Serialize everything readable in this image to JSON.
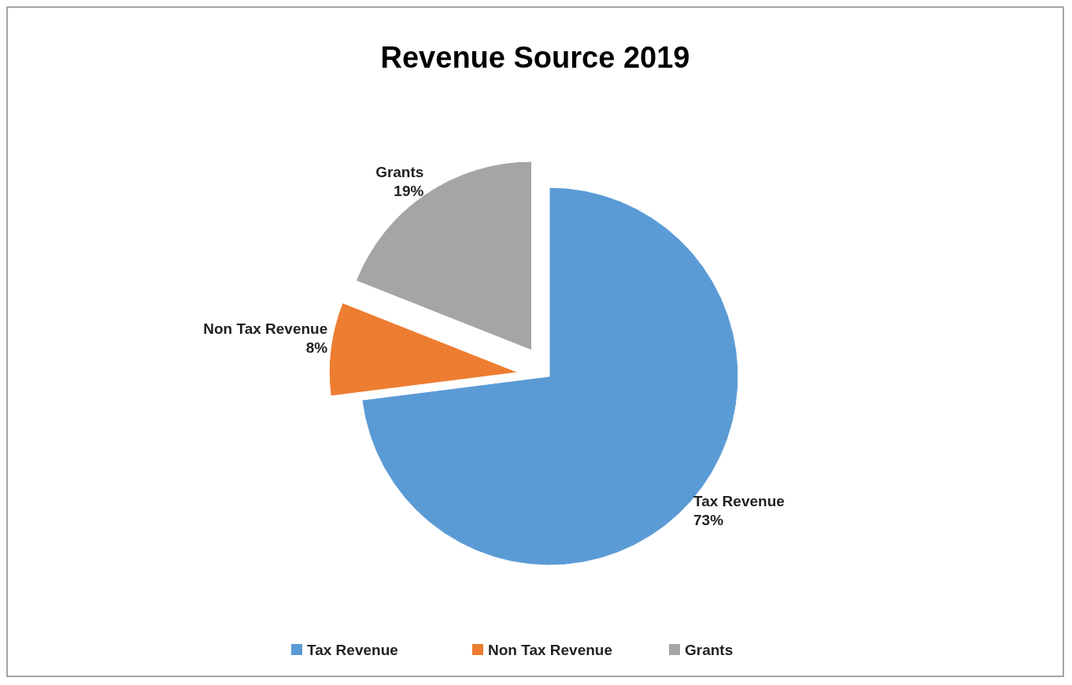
{
  "chart_data": {
    "type": "pie",
    "title": "Revenue Source 2019",
    "categories": [
      "Tax Revenue",
      "Non Tax Revenue",
      "Grants"
    ],
    "values": [
      73,
      8,
      19
    ],
    "colors": [
      "#5b9bd5",
      "#ed7d31",
      "#a5a5a5"
    ],
    "value_labels": [
      "73%",
      "8%",
      "19%"
    ],
    "legend": "bottom"
  }
}
